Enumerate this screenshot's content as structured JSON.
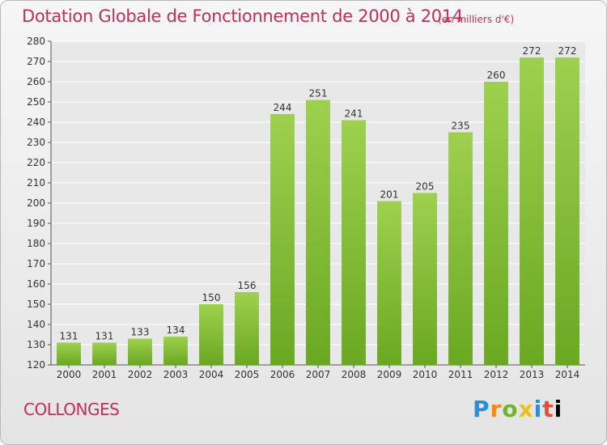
{
  "header": {
    "title": "Dotation Globale de Fonctionnement de 2000 à 2014",
    "unit": "(en milliers d'€)"
  },
  "footer": {
    "commune": "COLLONGES",
    "logo": "Proxiti"
  },
  "colors": {
    "bar_top": "#9ed04f",
    "bar_bottom": "#6aa822",
    "title": "#c03058",
    "grid": "#ffffff"
  },
  "chart_data": {
    "type": "bar",
    "title": "Dotation Globale de Fonctionnement de 2000 à 2014",
    "subtitle": "(en milliers d'€)",
    "xlabel": "",
    "ylabel": "",
    "categories": [
      "2000",
      "2001",
      "2002",
      "2003",
      "2004",
      "2005",
      "2006",
      "2007",
      "2008",
      "2009",
      "2010",
      "2011",
      "2012",
      "2013",
      "2014"
    ],
    "values": [
      131,
      131,
      133,
      134,
      150,
      156,
      244,
      251,
      241,
      201,
      205,
      235,
      260,
      272,
      272
    ],
    "ylim": [
      120,
      280
    ],
    "yticks": [
      120,
      130,
      140,
      150,
      160,
      170,
      180,
      190,
      200,
      210,
      220,
      230,
      240,
      250,
      260,
      270,
      280
    ],
    "grid": true,
    "data_labels": true
  }
}
